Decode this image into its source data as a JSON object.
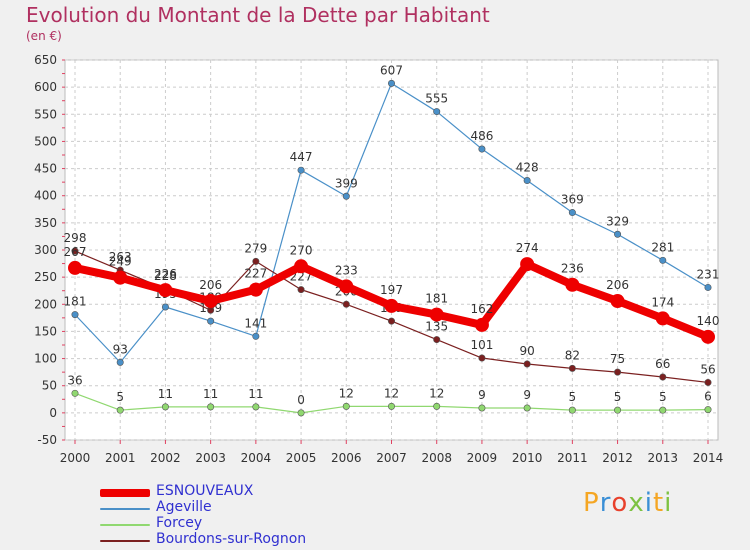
{
  "title": "Evolution du Montant de la Dette par Habitant",
  "subtitle": "(en €)",
  "brand": {
    "text": "Proxiti",
    "colors": [
      "#f5a623",
      "#3a8fd6",
      "#e8412c",
      "#7dc242",
      "#3a8fd6",
      "#f5a623",
      "#7dc242"
    ]
  },
  "chart_data": {
    "type": "line",
    "x": [
      2000,
      2001,
      2002,
      2003,
      2004,
      2005,
      2006,
      2007,
      2008,
      2009,
      2010,
      2011,
      2012,
      2013,
      2014
    ],
    "ylim": [
      -50,
      650
    ],
    "yticks": [
      -50,
      0,
      50,
      100,
      150,
      200,
      250,
      300,
      350,
      400,
      450,
      500,
      550,
      600,
      650
    ],
    "grid": true,
    "legend_position": "bottom-left",
    "series": [
      {
        "name": "Ageville",
        "color": "#4a90c8",
        "values": [
          181,
          93,
          195,
          169,
          141,
          447,
          399,
          607,
          555,
          486,
          428,
          369,
          329,
          281,
          231
        ]
      },
      {
        "name": "Forcey",
        "color": "#90d870",
        "values": [
          36,
          5,
          11,
          11,
          11,
          0,
          12,
          12,
          12,
          9,
          9,
          5,
          5,
          5,
          6
        ]
      },
      {
        "name": "Bourdons-sur-Rognon",
        "color": "#7b2020",
        "values": [
          298,
          263,
          228,
          189,
          279,
          227,
          200,
          169,
          135,
          101,
          90,
          82,
          75,
          66,
          56
        ]
      },
      {
        "name": "ESNOUVEAUX",
        "color": "#ee0000",
        "values": [
          267,
          249,
          226,
          206,
          227,
          270,
          233,
          197,
          181,
          162,
          274,
          236,
          206,
          174,
          140
        ]
      }
    ]
  }
}
